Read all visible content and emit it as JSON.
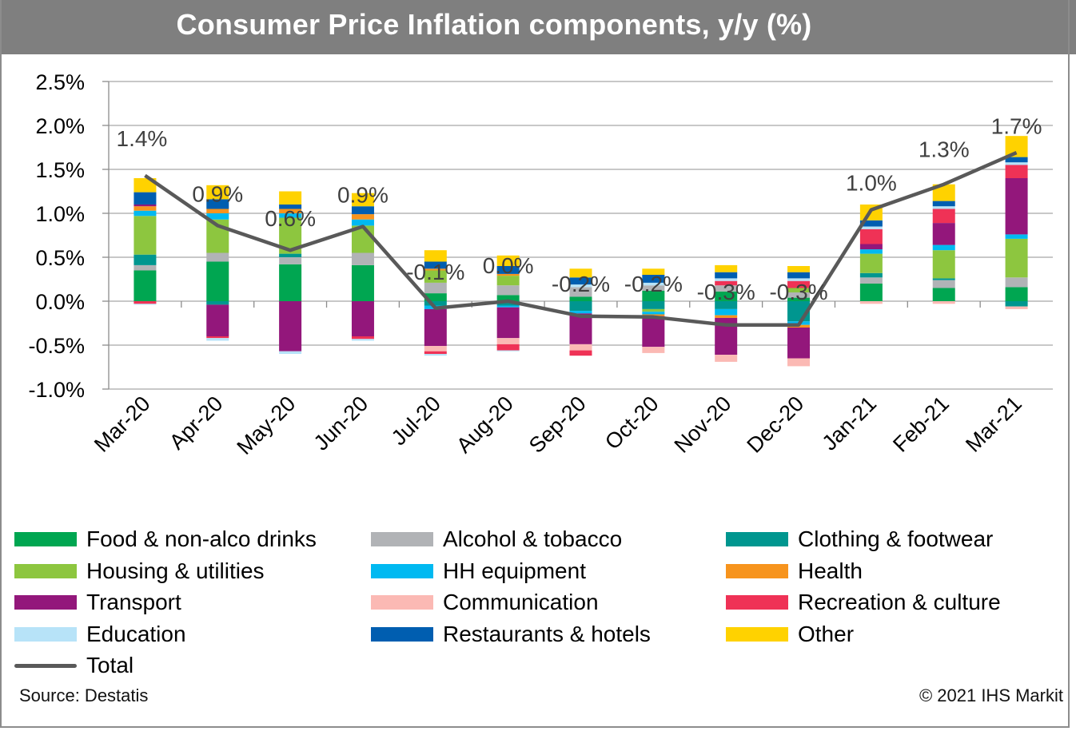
{
  "header": {
    "title": "Consumer Price Inflation components, y/y (%)"
  },
  "footer": {
    "source": "Source: Destatis",
    "copyright": "© 2021 IHS Markit"
  },
  "chart_data": {
    "type": "bar",
    "stacked": true,
    "title": "Consumer Price Inflation components, y/y (%)",
    "xlabel": "",
    "ylabel": "",
    "ylim": [
      -1.0,
      2.5
    ],
    "yticks": [
      -1.0,
      -0.5,
      0.0,
      0.5,
      1.0,
      1.5,
      2.0,
      2.5
    ],
    "ytick_labels": [
      "-1.0%",
      "-0.5%",
      "0.0%",
      "0.5%",
      "1.0%",
      "1.5%",
      "2.0%",
      "2.5%"
    ],
    "grid": true,
    "legend_position": "bottom",
    "categories": [
      "Mar-20",
      "Apr-20",
      "May-20",
      "Jun-20",
      "Jul-20",
      "Aug-20",
      "Sep-20",
      "Oct-20",
      "Nov-20",
      "Dec-20",
      "Jan-21",
      "Feb-21",
      "Mar-21"
    ],
    "series": [
      {
        "name": "Food & non-alco drinks",
        "color": "#00a651",
        "values": [
          0.35,
          0.45,
          0.42,
          0.41,
          0.09,
          0.07,
          0.05,
          0.12,
          0.11,
          0.04,
          0.2,
          0.15,
          0.16
        ]
      },
      {
        "name": "Alcohol & tobacco",
        "color": "#b1b3b6",
        "values": [
          0.06,
          0.1,
          0.08,
          0.14,
          0.12,
          0.11,
          0.11,
          0.06,
          0.07,
          0.06,
          0.07,
          0.09,
          0.11
        ]
      },
      {
        "name": "Clothing & footwear",
        "color": "#00968f",
        "values": [
          0.12,
          -0.04,
          0.04,
          0.0,
          -0.05,
          -0.05,
          -0.11,
          -0.09,
          -0.09,
          -0.23,
          0.05,
          0.02,
          -0.06
        ]
      },
      {
        "name": "Housing & utilities",
        "color": "#8dc63f",
        "values": [
          0.44,
          0.38,
          0.41,
          0.31,
          0.14,
          0.11,
          0.0,
          -0.03,
          0.0,
          0.05,
          0.22,
          0.32,
          0.44
        ]
      },
      {
        "name": "HH equipment",
        "color": "#00b9f1",
        "values": [
          0.06,
          0.07,
          0.05,
          0.07,
          -0.04,
          -0.02,
          -0.03,
          -0.03,
          -0.07,
          -0.04,
          0.05,
          0.06,
          0.05
        ]
      },
      {
        "name": "Health",
        "color": "#f7941d",
        "values": [
          0.05,
          0.05,
          0.05,
          0.06,
          0.02,
          0.02,
          0.0,
          -0.02,
          -0.03,
          -0.03,
          0.0,
          0.0,
          0.0
        ]
      },
      {
        "name": "Transport",
        "color": "#93177b",
        "values": [
          0.02,
          -0.36,
          -0.57,
          -0.4,
          -0.42,
          -0.35,
          -0.35,
          -0.35,
          -0.42,
          -0.35,
          0.06,
          0.25,
          0.64
        ]
      },
      {
        "name": "Communication",
        "color": "#fbb9b4",
        "values": [
          0.0,
          0.0,
          0.0,
          0.0,
          -0.06,
          -0.07,
          -0.07,
          -0.07,
          -0.08,
          -0.09,
          -0.03,
          -0.03,
          -0.03
        ]
      },
      {
        "name": "Recreation & culture",
        "color": "#ef3256",
        "values": [
          -0.03,
          -0.02,
          0.0,
          -0.03,
          -0.03,
          -0.07,
          -0.06,
          0.0,
          0.05,
          0.08,
          0.17,
          0.16,
          0.15
        ]
      },
      {
        "name": "Education",
        "color": "#b7e3f8",
        "values": [
          -0.01,
          -0.03,
          -0.03,
          -0.02,
          -0.02,
          -0.01,
          0.03,
          0.03,
          0.03,
          0.03,
          0.03,
          0.03,
          0.03
        ]
      },
      {
        "name": "Restaurants & hotels",
        "color": "#005eb0",
        "values": [
          0.14,
          0.11,
          0.05,
          0.09,
          0.08,
          0.09,
          0.08,
          0.09,
          0.07,
          0.07,
          0.07,
          0.06,
          0.06
        ]
      },
      {
        "name": "Other",
        "color": "#ffd200",
        "values": [
          0.16,
          0.16,
          0.15,
          0.15,
          0.13,
          0.12,
          0.1,
          0.07,
          0.08,
          0.07,
          0.18,
          0.19,
          0.24
        ]
      }
    ],
    "line_series": {
      "name": "Total",
      "color": "#595959",
      "values": [
        1.43,
        0.86,
        0.58,
        0.85,
        -0.08,
        0.0,
        -0.17,
        -0.18,
        -0.27,
        -0.27,
        1.04,
        1.33,
        1.69
      ],
      "data_labels": [
        "1.4%",
        "0.9%",
        "0.6%",
        "0.9%",
        "-0.1%",
        "0.0%",
        "-0.2%",
        "-0.2%",
        "-0.3%",
        "-0.3%",
        "1.0%",
        "1.3%",
        "1.7%"
      ]
    },
    "legend": [
      "Food & non-alco drinks",
      "Alcohol & tobacco",
      "Clothing & footwear",
      "Housing & utilities",
      "HH equipment",
      "Health",
      "Transport",
      "Communication",
      "Recreation & culture",
      "Education",
      "Restaurants & hotels",
      "Other",
      "Total"
    ]
  }
}
